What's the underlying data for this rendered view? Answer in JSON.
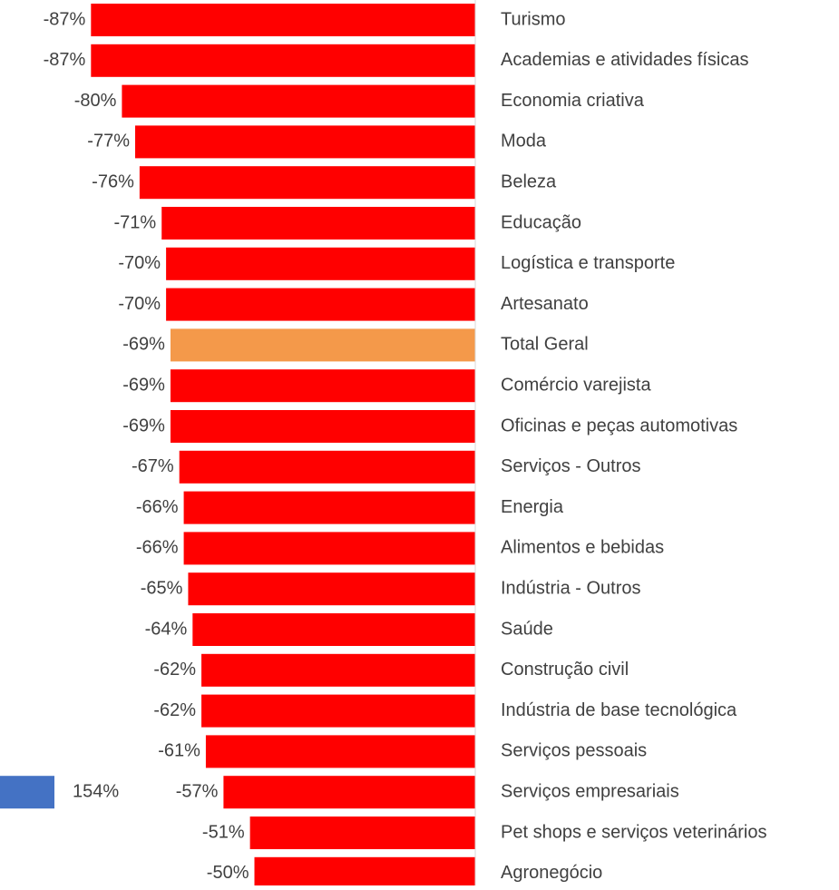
{
  "chart_data": {
    "type": "bar",
    "orientation": "horizontal",
    "categories": [
      "Turismo",
      "Academias e atividades físicas",
      "Economia criativa",
      "Moda",
      "Beleza",
      "Educação",
      "Logística e transporte",
      "Artesanato",
      "Total Geral",
      "Comércio varejista",
      "Oficinas e peças automotivas",
      "Serviços - Outros",
      "Energia",
      "Alimentos e bebidas",
      "Indústria - Outros",
      "Saúde",
      "Construção civil",
      "Indústria de base tecnológica",
      "Serviços pessoais",
      "Serviços empresariais",
      "Pet shops e serviços veterinários",
      "Agronegócio"
    ],
    "series": [
      {
        "color": "#ff0000",
        "highlight_color": "#f4994a",
        "highlight_index": 8,
        "values": [
          -87,
          -87,
          -80,
          -77,
          -76,
          -71,
          -70,
          -70,
          -69,
          -69,
          -69,
          -67,
          -66,
          -66,
          -65,
          -64,
          -62,
          -62,
          -61,
          -57,
          -51,
          -50
        ],
        "value_labels": [
          "-87%",
          "-87%",
          "-80%",
          "-77%",
          "-76%",
          "-71%",
          "-70%",
          "-70%",
          "-69%",
          "-69%",
          "-69%",
          "-67%",
          "-66%",
          "-66%",
          "-65%",
          "-64%",
          "-62%",
          "-62%",
          "-61%",
          "-57%",
          "-51%",
          "-50%"
        ]
      },
      {
        "color": "#4472c4",
        "axis": "x2",
        "values": [
          null,
          null,
          null,
          null,
          null,
          null,
          null,
          null,
          null,
          null,
          null,
          null,
          null,
          null,
          null,
          null,
          null,
          null,
          null,
          154,
          null,
          null
        ],
        "value_labels": [
          null,
          null,
          null,
          null,
          null,
          null,
          null,
          null,
          null,
          null,
          null,
          null,
          null,
          null,
          null,
          null,
          null,
          null,
          null,
          "154%",
          null,
          null
        ]
      }
    ],
    "xlim": [
      -100,
      0
    ],
    "x2lim": [
      0,
      154
    ]
  }
}
